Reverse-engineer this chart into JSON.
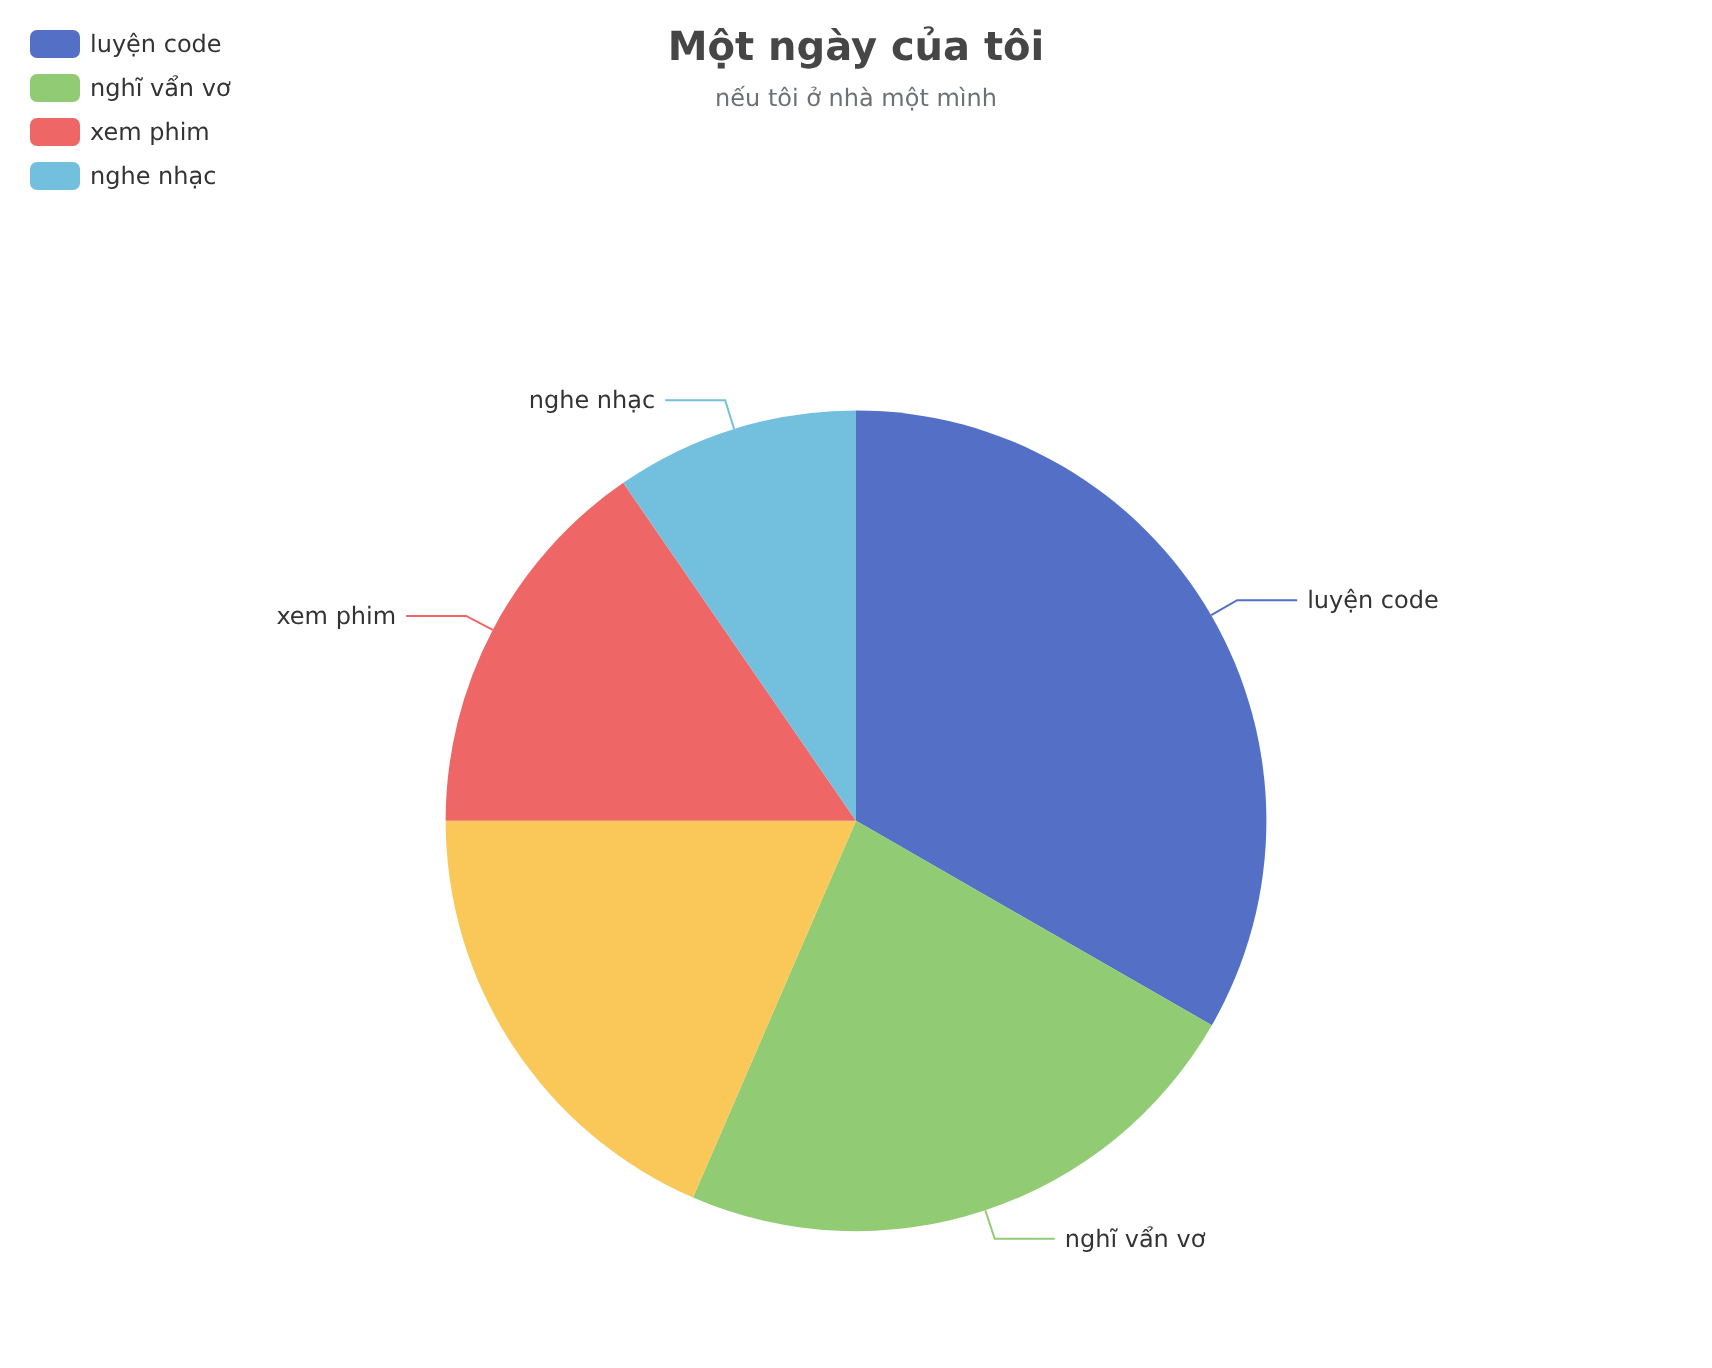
{
  "chart_data": {
    "type": "pie",
    "title": "Một ngày của tôi",
    "subtitle": "nếu tôi ở nhà một mình",
    "categories": [
      "luyện code",
      "nghĩ vẩn vơ",
      null,
      "xem phim",
      "nghe nhạc"
    ],
    "values": [
      33.3,
      23.2,
      18.5,
      15.4,
      9.6
    ],
    "colors": [
      "#5470c6",
      "#91cc75",
      "#fac858",
      "#ee6666",
      "#73c0de"
    ],
    "legend": "top left"
  }
}
